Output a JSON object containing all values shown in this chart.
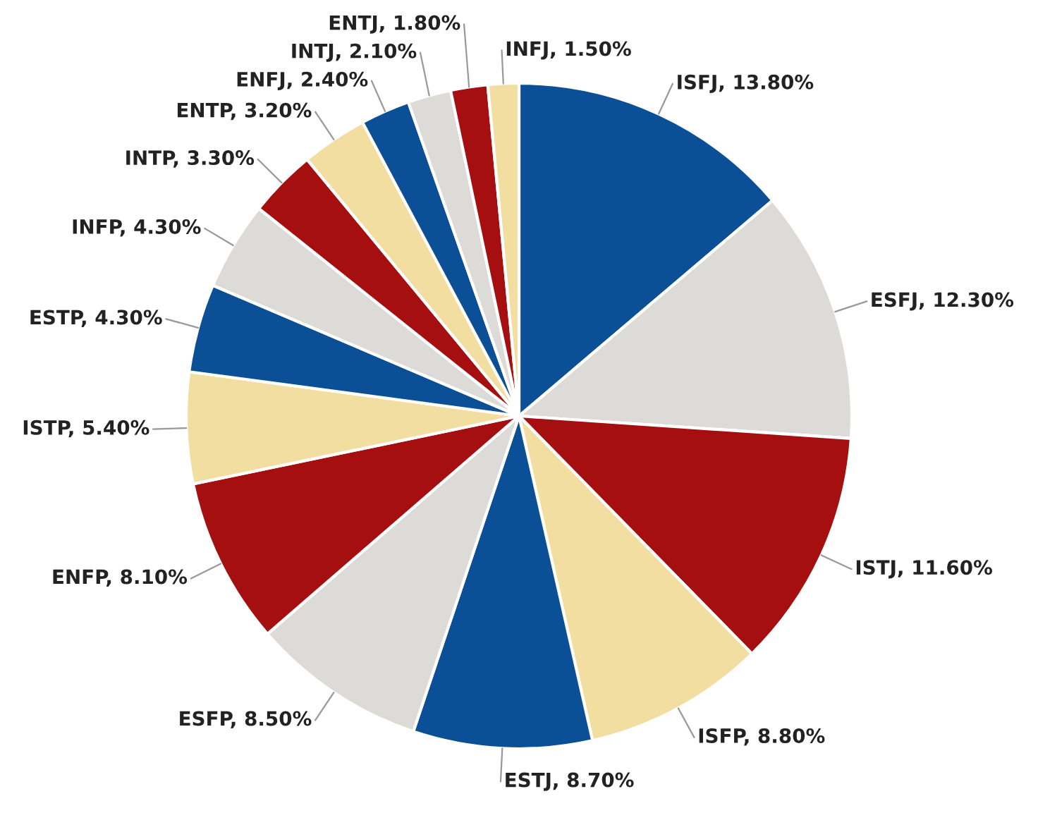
{
  "chart_data": {
    "type": "pie",
    "categories": [
      "ISFJ",
      "ESFJ",
      "ISTJ",
      "ISFP",
      "ESTJ",
      "ESFP",
      "ENFP",
      "ISTP",
      "ESTP",
      "INFP",
      "INTP",
      "ENTP",
      "ENFJ",
      "INTJ",
      "ENTJ",
      "INFJ"
    ],
    "values": [
      13.8,
      12.3,
      11.6,
      8.8,
      8.7,
      8.5,
      8.1,
      5.4,
      4.3,
      4.3,
      3.3,
      3.2,
      2.4,
      2.1,
      1.8,
      1.5
    ],
    "value_labels": [
      "13.80%",
      "12.30%",
      "11.60%",
      "8.80%",
      "8.70%",
      "8.50%",
      "8.10%",
      "5.40%",
      "4.30%",
      "4.30%",
      "3.30%",
      "3.20%",
      "2.40%",
      "2.10%",
      "1.80%",
      "1.50%"
    ],
    "colors": [
      "#0b4f96",
      "#dcdbd8",
      "#a50f0f",
      "#f2dea0",
      "#0b4f96",
      "#dcdbd8",
      "#a50f0f",
      "#f2dea0",
      "#0b4f96",
      "#dcdbd8",
      "#a50f0f",
      "#f2dea0",
      "#0b4f96",
      "#dcdbd8",
      "#a50f0f",
      "#f2dea0"
    ],
    "legend": false
  }
}
